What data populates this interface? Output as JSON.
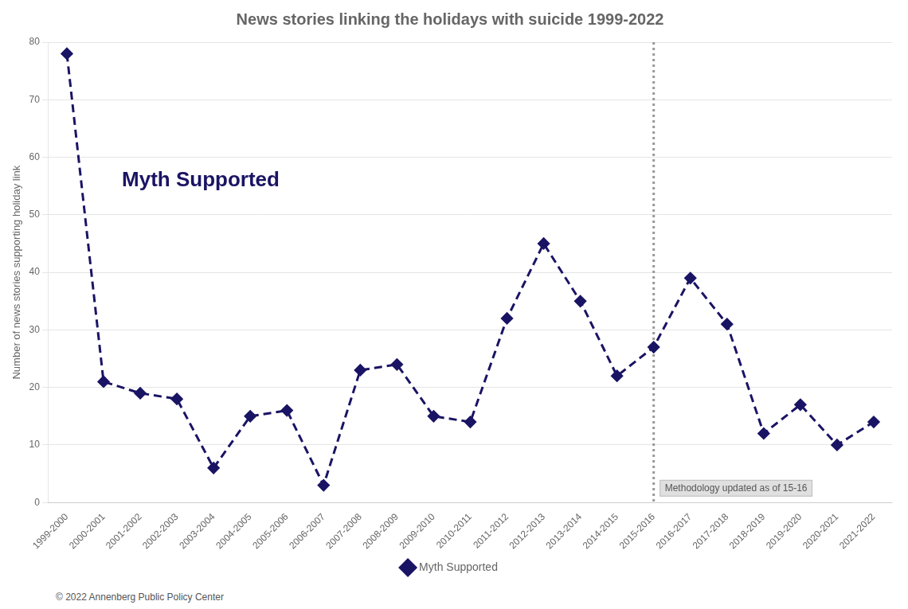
{
  "chart_data": {
    "type": "line",
    "title": "News stories linking the holidays with suicide 1999-2022",
    "ylabel": "Number of news stories supporting holiday link",
    "categories": [
      "1999-2000",
      "2000-2001",
      "2001-2002",
      "2002-2003",
      "2003-2004",
      "2004-2005",
      "2005-2006",
      "2006-2007",
      "2007-2008",
      "2008-2009",
      "2009-2010",
      "2010-2011",
      "2011-2012",
      "2012-2013",
      "2013-2014",
      "2014-2015",
      "2015-2016",
      "2016-2017",
      "2017-2018",
      "2018-2019",
      "2019-2020",
      "2020-2021",
      "2021-2022"
    ],
    "series": [
      {
        "name": "Myth Supported",
        "color": "#1a1464",
        "marker": "diamond",
        "line_style": "dashed",
        "values": [
          78,
          21,
          19,
          18,
          6,
          15,
          16,
          3,
          23,
          24,
          15,
          14,
          32,
          45,
          35,
          22,
          27,
          39,
          31,
          12,
          17,
          10,
          14
        ]
      }
    ],
    "ylim": [
      0,
      80
    ],
    "yticks": [
      0,
      10,
      20,
      30,
      40,
      50,
      60,
      70,
      80
    ],
    "grid": true,
    "legend": "bottom",
    "annotations": [
      {
        "text": "Myth Supported",
        "x": 1.5,
        "y": 56,
        "color": "#1a1464"
      }
    ],
    "vline": {
      "x": "2015-2016",
      "label": "Methodology updated as of 15-16",
      "color": "#999999"
    },
    "footer": "© 2022 Annenberg Public Policy Center"
  }
}
